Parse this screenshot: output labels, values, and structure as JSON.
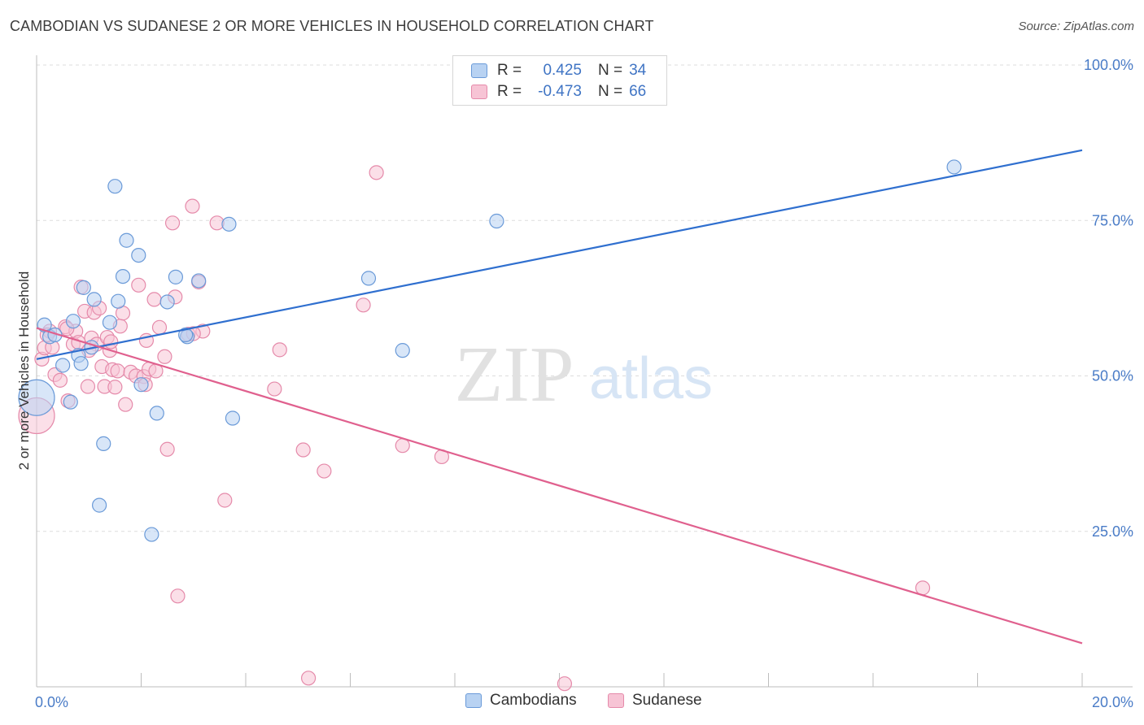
{
  "title": "CAMBODIAN VS SUDANESE 2 OR MORE VEHICLES IN HOUSEHOLD CORRELATION CHART",
  "source": "Source: ZipAtlas.com",
  "watermark": {
    "zip": "ZIP",
    "atlas": "atlas"
  },
  "legend_top": {
    "rows": [
      {
        "r_label": "R =",
        "r_value": "0.425",
        "n_label": "N =",
        "n_value": "34"
      },
      {
        "r_label": "R =",
        "r_value": "-0.473",
        "n_label": "N =",
        "n_value": "66"
      }
    ]
  },
  "legend_bottom": {
    "items": [
      "Cambodians",
      "Sudanese"
    ]
  },
  "colors": {
    "blue_fill": "#b8d2f2",
    "blue_stroke": "#6a9ad8",
    "blue_line": "#2f6fcf",
    "pink_fill": "#f7c4d5",
    "pink_stroke": "#e58aaa",
    "pink_line": "#e0608e",
    "tick_text": "#4a7cc7",
    "grid": "#dddddd"
  },
  "chart_data": {
    "type": "scatter",
    "title": "CAMBODIAN VS SUDANESE 2 OR MORE VEHICLES IN HOUSEHOLD CORRELATION CHART",
    "xlabel": "",
    "ylabel": "2 or more Vehicles in Household",
    "xlim": [
      0,
      20
    ],
    "ylim": [
      0,
      105
    ],
    "x_tick_labels": [
      "0.0%",
      "20.0%"
    ],
    "y_ticks": [
      25,
      50,
      75,
      100
    ],
    "y_tick_labels": [
      "25.0%",
      "50.0%",
      "75.0%",
      "100.0%"
    ],
    "grid": true,
    "legend_position": "top-center",
    "series": [
      {
        "name": "Cambodians",
        "color": "#6a9ad8",
        "trend": {
          "x": [
            0,
            20
          ],
          "y": [
            52.7,
            86.3
          ]
        },
        "points": [
          {
            "x": 0.0,
            "y": 46.5,
            "big": true
          },
          {
            "x": 0.15,
            "y": 58.2
          },
          {
            "x": 0.25,
            "y": 56.3
          },
          {
            "x": 0.35,
            "y": 56.6
          },
          {
            "x": 0.5,
            "y": 51.7
          },
          {
            "x": 0.65,
            "y": 45.8
          },
          {
            "x": 0.7,
            "y": 58.8
          },
          {
            "x": 0.8,
            "y": 53.3
          },
          {
            "x": 0.85,
            "y": 52.0
          },
          {
            "x": 0.9,
            "y": 64.2
          },
          {
            "x": 1.05,
            "y": 54.6
          },
          {
            "x": 1.1,
            "y": 62.3
          },
          {
            "x": 1.2,
            "y": 29.2
          },
          {
            "x": 1.28,
            "y": 39.1
          },
          {
            "x": 1.4,
            "y": 58.6
          },
          {
            "x": 1.5,
            "y": 80.5
          },
          {
            "x": 1.56,
            "y": 62.0
          },
          {
            "x": 1.65,
            "y": 66.0
          },
          {
            "x": 1.72,
            "y": 71.8
          },
          {
            "x": 1.95,
            "y": 69.4
          },
          {
            "x": 2.0,
            "y": 48.6
          },
          {
            "x": 2.2,
            "y": 24.5
          },
          {
            "x": 2.3,
            "y": 44.0
          },
          {
            "x": 2.5,
            "y": 61.9
          },
          {
            "x": 2.66,
            "y": 65.9
          },
          {
            "x": 2.88,
            "y": 56.3
          },
          {
            "x": 3.1,
            "y": 65.3
          },
          {
            "x": 3.68,
            "y": 74.4
          },
          {
            "x": 3.75,
            "y": 43.2
          },
          {
            "x": 2.85,
            "y": 56.6
          },
          {
            "x": 6.35,
            "y": 65.7
          },
          {
            "x": 7.0,
            "y": 54.1
          },
          {
            "x": 8.8,
            "y": 74.9
          },
          {
            "x": 17.55,
            "y": 83.6
          }
        ]
      },
      {
        "name": "Sudanese",
        "color": "#e58aaa",
        "trend": {
          "x": [
            0,
            20
          ],
          "y": [
            57.7,
            7.0
          ]
        },
        "points": [
          {
            "x": 0.0,
            "y": 43.6,
            "big": true
          },
          {
            "x": 0.1,
            "y": 52.7
          },
          {
            "x": 0.15,
            "y": 54.5
          },
          {
            "x": 0.25,
            "y": 57.2
          },
          {
            "x": 0.3,
            "y": 54.6
          },
          {
            "x": 0.35,
            "y": 50.2
          },
          {
            "x": 0.45,
            "y": 49.3
          },
          {
            "x": 0.55,
            "y": 57.9
          },
          {
            "x": 0.6,
            "y": 46.0
          },
          {
            "x": 0.7,
            "y": 55.1
          },
          {
            "x": 0.75,
            "y": 57.2
          },
          {
            "x": 0.8,
            "y": 55.4
          },
          {
            "x": 0.85,
            "y": 64.3
          },
          {
            "x": 0.92,
            "y": 60.4
          },
          {
            "x": 0.98,
            "y": 48.3
          },
          {
            "x": 1.05,
            "y": 56.1
          },
          {
            "x": 1.1,
            "y": 60.2
          },
          {
            "x": 1.15,
            "y": 55.1
          },
          {
            "x": 1.2,
            "y": 60.9
          },
          {
            "x": 1.25,
            "y": 51.5
          },
          {
            "x": 1.3,
            "y": 48.3
          },
          {
            "x": 1.35,
            "y": 56.2
          },
          {
            "x": 1.4,
            "y": 54.1
          },
          {
            "x": 1.45,
            "y": 51.0
          },
          {
            "x": 1.5,
            "y": 48.2
          },
          {
            "x": 1.55,
            "y": 50.8
          },
          {
            "x": 1.6,
            "y": 58.0
          },
          {
            "x": 1.65,
            "y": 60.1
          },
          {
            "x": 1.7,
            "y": 45.4
          },
          {
            "x": 1.8,
            "y": 50.6
          },
          {
            "x": 1.9,
            "y": 50.0
          },
          {
            "x": 1.95,
            "y": 64.6
          },
          {
            "x": 2.05,
            "y": 49.9
          },
          {
            "x": 2.1,
            "y": 55.7
          },
          {
            "x": 2.15,
            "y": 51.1
          },
          {
            "x": 2.25,
            "y": 62.3
          },
          {
            "x": 2.35,
            "y": 57.8
          },
          {
            "x": 2.45,
            "y": 53.1
          },
          {
            "x": 2.5,
            "y": 38.2
          },
          {
            "x": 2.6,
            "y": 74.6
          },
          {
            "x": 2.65,
            "y": 62.7
          },
          {
            "x": 2.7,
            "y": 14.6
          },
          {
            "x": 2.9,
            "y": 56.7
          },
          {
            "x": 2.98,
            "y": 77.3
          },
          {
            "x": 3.1,
            "y": 65.1
          },
          {
            "x": 3.18,
            "y": 57.2
          },
          {
            "x": 3.45,
            "y": 74.6
          },
          {
            "x": 3.6,
            "y": 30.0
          },
          {
            "x": 4.55,
            "y": 47.9
          },
          {
            "x": 4.65,
            "y": 54.2
          },
          {
            "x": 5.1,
            "y": 38.1
          },
          {
            "x": 5.2,
            "y": 1.4
          },
          {
            "x": 5.5,
            "y": 34.7
          },
          {
            "x": 6.25,
            "y": 61.4
          },
          {
            "x": 6.5,
            "y": 82.7
          },
          {
            "x": 7.0,
            "y": 38.8
          },
          {
            "x": 7.75,
            "y": 37.0
          },
          {
            "x": 10.1,
            "y": 0.5
          },
          {
            "x": 16.95,
            "y": 15.9
          },
          {
            "x": 0.58,
            "y": 57.6
          },
          {
            "x": 1.42,
            "y": 55.5
          },
          {
            "x": 2.08,
            "y": 48.6
          },
          {
            "x": 0.2,
            "y": 56.6
          },
          {
            "x": 1.0,
            "y": 54.1
          },
          {
            "x": 2.28,
            "y": 50.8
          },
          {
            "x": 3.0,
            "y": 56.8
          }
        ]
      }
    ]
  }
}
